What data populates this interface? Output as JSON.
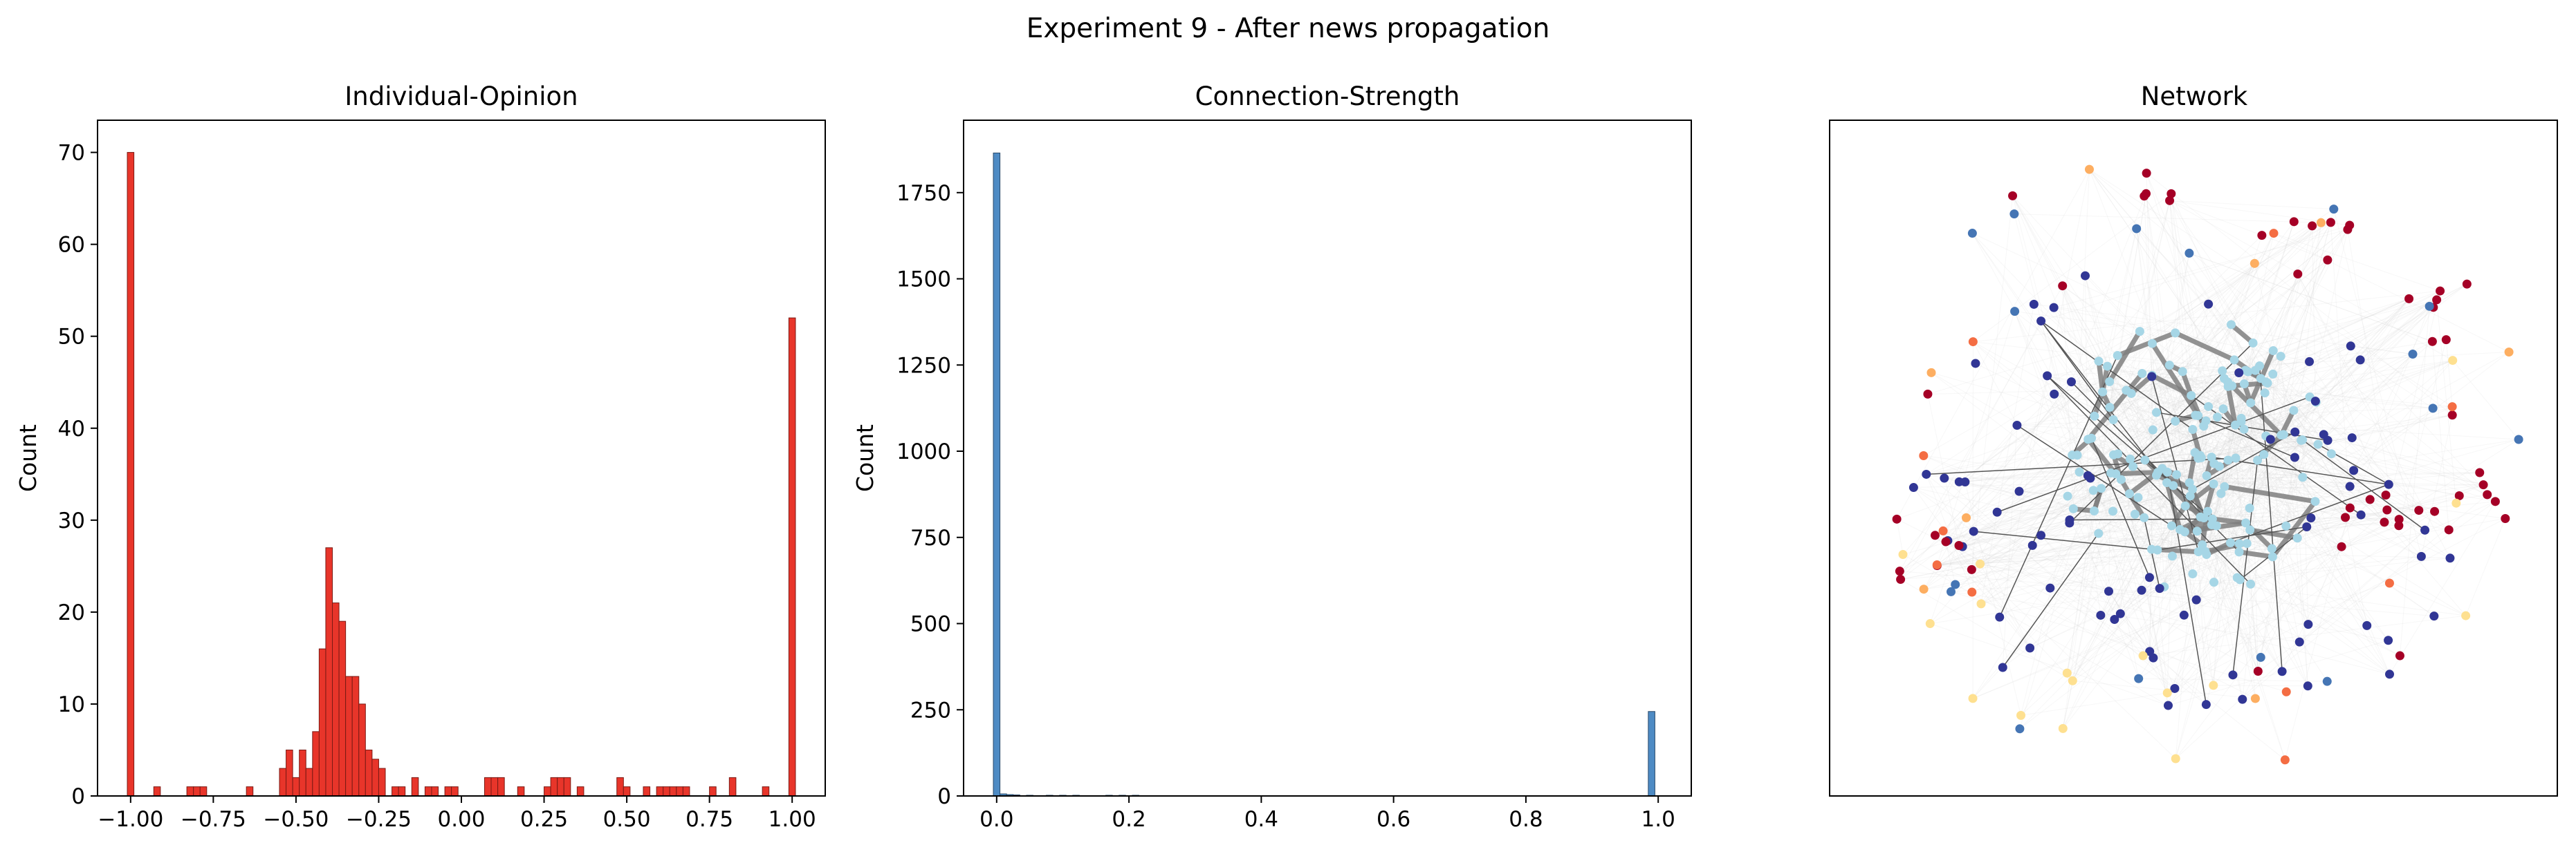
{
  "figure": {
    "suptitle": "Experiment 9 - After news propagation"
  },
  "chart_data": [
    {
      "type": "bar",
      "title": "Individual-Opinion",
      "xlabel": "",
      "ylabel": "Count",
      "xlim": [
        -1.1,
        1.1
      ],
      "ylim": [
        0,
        73.5
      ],
      "bin_width": 0.02,
      "color": "#e8352a",
      "edge_color": "#7a1a14",
      "xticks": [
        "-1.00",
        "-0.75",
        "-0.50",
        "-0.25",
        "0.00",
        "0.25",
        "0.50",
        "0.75",
        "1.00"
      ],
      "yticks": [
        "0",
        "10",
        "20",
        "30",
        "40",
        "50",
        "60",
        "70"
      ],
      "bins": [
        [
          -1.0,
          70
        ],
        [
          -0.92,
          1
        ],
        [
          -0.82,
          1
        ],
        [
          -0.8,
          1
        ],
        [
          -0.78,
          1
        ],
        [
          -0.64,
          1
        ],
        [
          -0.54,
          3
        ],
        [
          -0.52,
          5
        ],
        [
          -0.5,
          2
        ],
        [
          -0.48,
          5
        ],
        [
          -0.46,
          3
        ],
        [
          -0.44,
          7
        ],
        [
          -0.42,
          16
        ],
        [
          -0.4,
          27
        ],
        [
          -0.38,
          21
        ],
        [
          -0.36,
          19
        ],
        [
          -0.34,
          13
        ],
        [
          -0.32,
          13
        ],
        [
          -0.3,
          10
        ],
        [
          -0.28,
          5
        ],
        [
          -0.26,
          4
        ],
        [
          -0.24,
          3
        ],
        [
          -0.2,
          1
        ],
        [
          -0.18,
          1
        ],
        [
          -0.14,
          2
        ],
        [
          -0.1,
          1
        ],
        [
          -0.08,
          1
        ],
        [
          -0.04,
          1
        ],
        [
          -0.02,
          1
        ],
        [
          0.08,
          2
        ],
        [
          0.1,
          2
        ],
        [
          0.12,
          2
        ],
        [
          0.18,
          1
        ],
        [
          0.26,
          1
        ],
        [
          0.28,
          2
        ],
        [
          0.3,
          2
        ],
        [
          0.32,
          2
        ],
        [
          0.36,
          1
        ],
        [
          0.48,
          2
        ],
        [
          0.5,
          1
        ],
        [
          0.56,
          1
        ],
        [
          0.6,
          1
        ],
        [
          0.62,
          1
        ],
        [
          0.64,
          1
        ],
        [
          0.66,
          1
        ],
        [
          0.68,
          1
        ],
        [
          0.76,
          1
        ],
        [
          0.82,
          2
        ],
        [
          0.92,
          1
        ],
        [
          1.0,
          52
        ]
      ]
    },
    {
      "type": "bar",
      "title": "Connection-Strength",
      "xlabel": "",
      "ylabel": "Count",
      "xlim": [
        -0.05,
        1.05
      ],
      "ylim": [
        0,
        1960
      ],
      "bin_width": 0.01,
      "color": "#4e8bc4",
      "edge_color": "#2a4a6a",
      "xticks": [
        "0.0",
        "0.2",
        "0.4",
        "0.6",
        "0.8",
        "1.0"
      ],
      "yticks": [
        "0",
        "250",
        "500",
        "750",
        "1000",
        "1250",
        "1500",
        "1750"
      ],
      "bins": [
        [
          0.0,
          1865
        ],
        [
          0.01,
          6
        ],
        [
          0.02,
          4
        ],
        [
          0.03,
          3
        ],
        [
          0.05,
          2
        ],
        [
          0.08,
          2
        ],
        [
          0.1,
          2
        ],
        [
          0.12,
          2
        ],
        [
          0.17,
          2
        ],
        [
          0.19,
          2
        ],
        [
          0.21,
          2
        ],
        [
          0.24,
          1
        ],
        [
          0.34,
          1
        ],
        [
          0.99,
          245
        ]
      ]
    },
    {
      "type": "network",
      "title": "Network",
      "node_colormap": [
        "#313695",
        "#4575b4",
        "#a6d6e6",
        "#fee090",
        "#fdae61",
        "#f46d43",
        "#a50026"
      ],
      "strong_edge_color": "#7f7f7f",
      "weak_edge_color": "#d3d3d3"
    }
  ]
}
